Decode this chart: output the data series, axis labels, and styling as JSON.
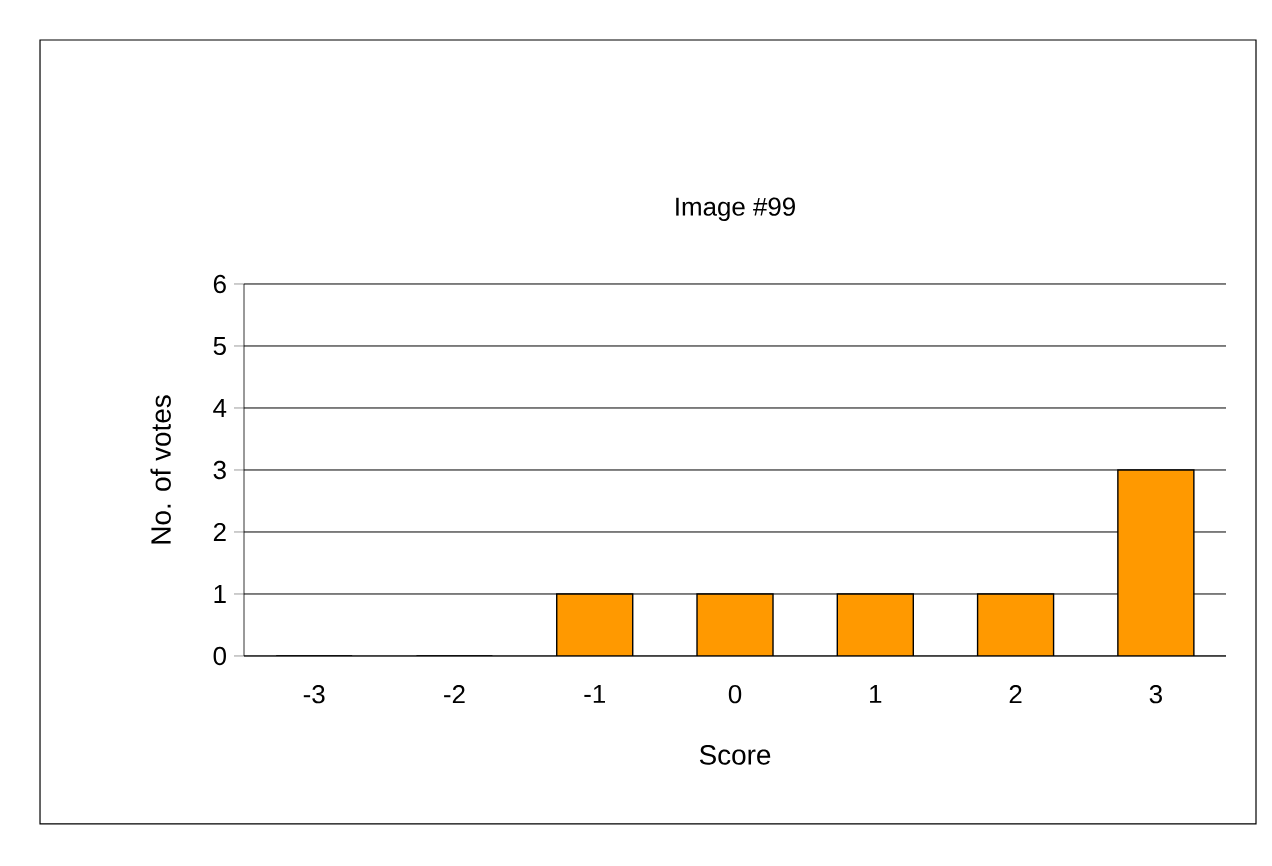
{
  "chart_data": {
    "type": "bar",
    "title": "Image #99",
    "xlabel": "Score",
    "ylabel": "No. of votes",
    "categories": [
      "-3",
      "-2",
      "-1",
      "0",
      "1",
      "2",
      "3"
    ],
    "values": [
      0,
      0,
      1,
      1,
      1,
      1,
      3
    ],
    "color": "#ff9900",
    "ylim": [
      0,
      6
    ],
    "yticks": [
      0,
      1,
      2,
      3,
      4,
      5,
      6
    ],
    "grid": "y"
  }
}
